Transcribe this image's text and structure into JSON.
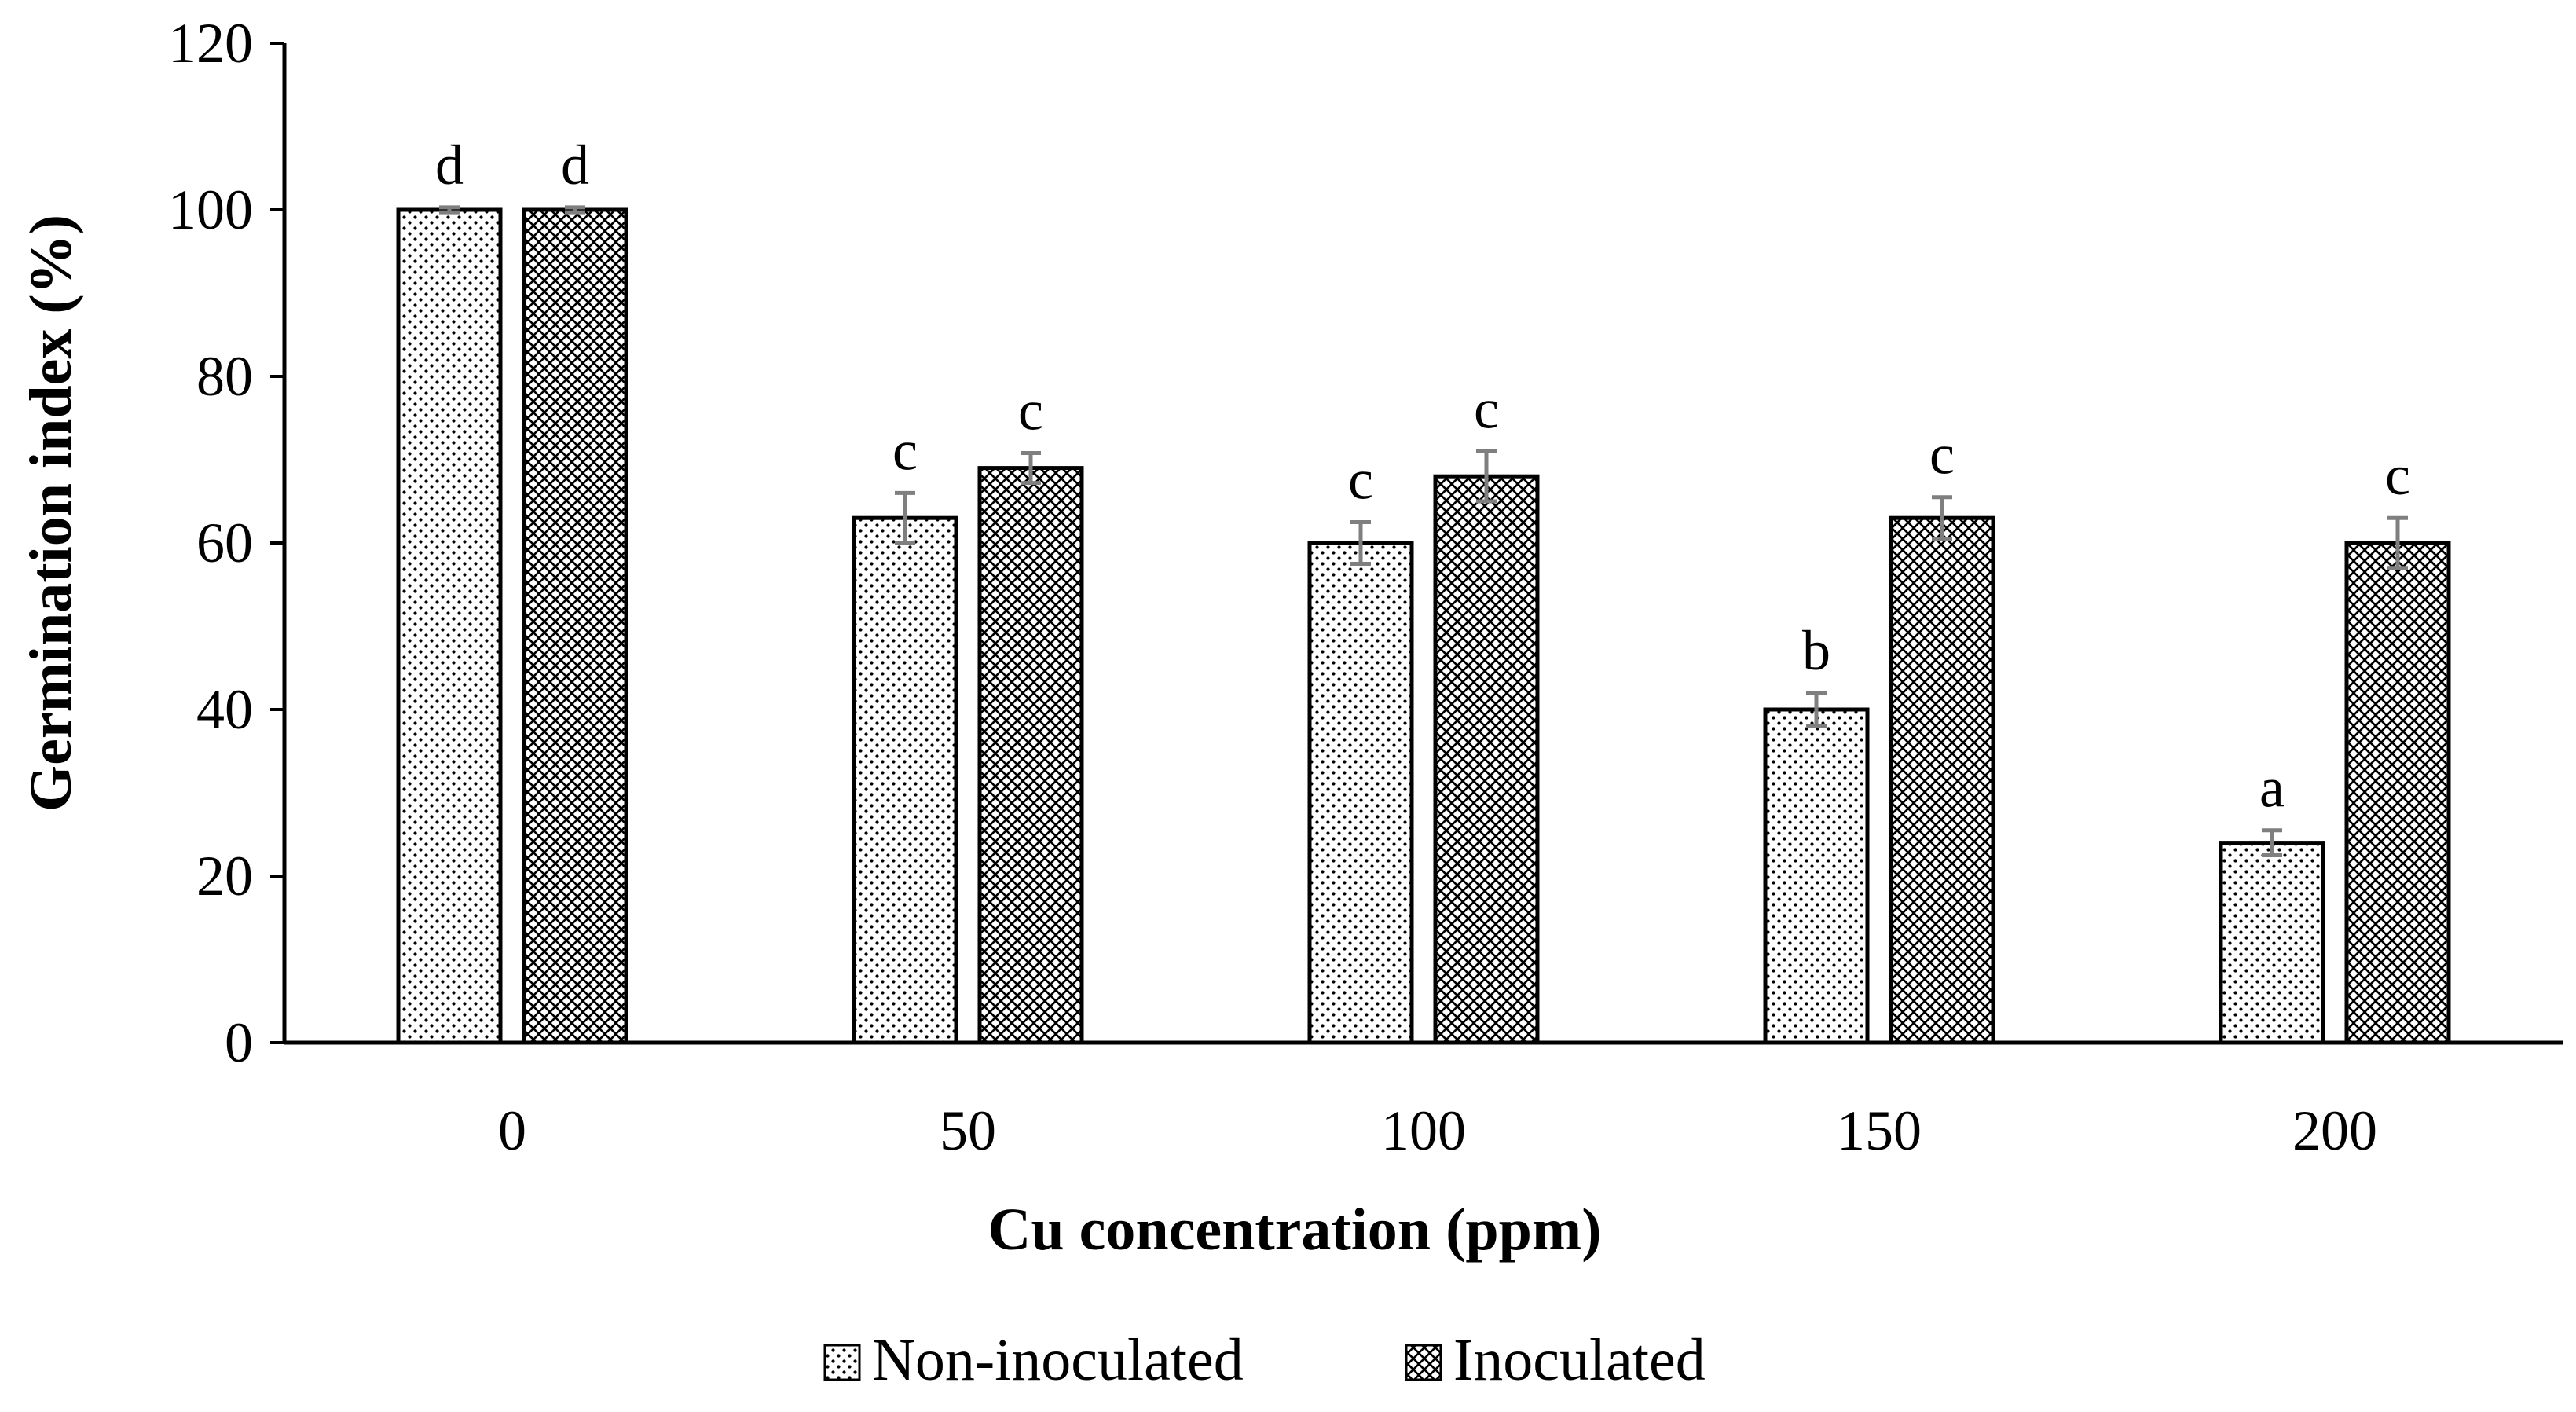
{
  "chart_data": {
    "type": "bar",
    "title": "",
    "xlabel": "Cu concentration (ppm)",
    "ylabel": "Germination index (%)",
    "categories": [
      "0",
      "50",
      "100",
      "150",
      "200"
    ],
    "ylim": [
      0,
      120
    ],
    "yticks": [
      "0",
      "20",
      "40",
      "60",
      "80",
      "100",
      "120"
    ],
    "grid": false,
    "legend_position": "bottom-center",
    "series": [
      {
        "name": "Non-inoculated",
        "pattern": "dots",
        "values": [
          100,
          63,
          60,
          40,
          24
        ],
        "errors": [
          0.3,
          3,
          2.5,
          2,
          1.5
        ],
        "labels": [
          "d",
          "c",
          "c",
          "b",
          "a"
        ]
      },
      {
        "name": "Inoculated",
        "pattern": "crosshatch",
        "values": [
          100,
          69,
          68,
          63,
          60
        ],
        "errors": [
          0.3,
          1.8,
          3,
          2.5,
          3
        ],
        "labels": [
          "d",
          "c",
          "c",
          "c",
          "c"
        ]
      }
    ]
  }
}
